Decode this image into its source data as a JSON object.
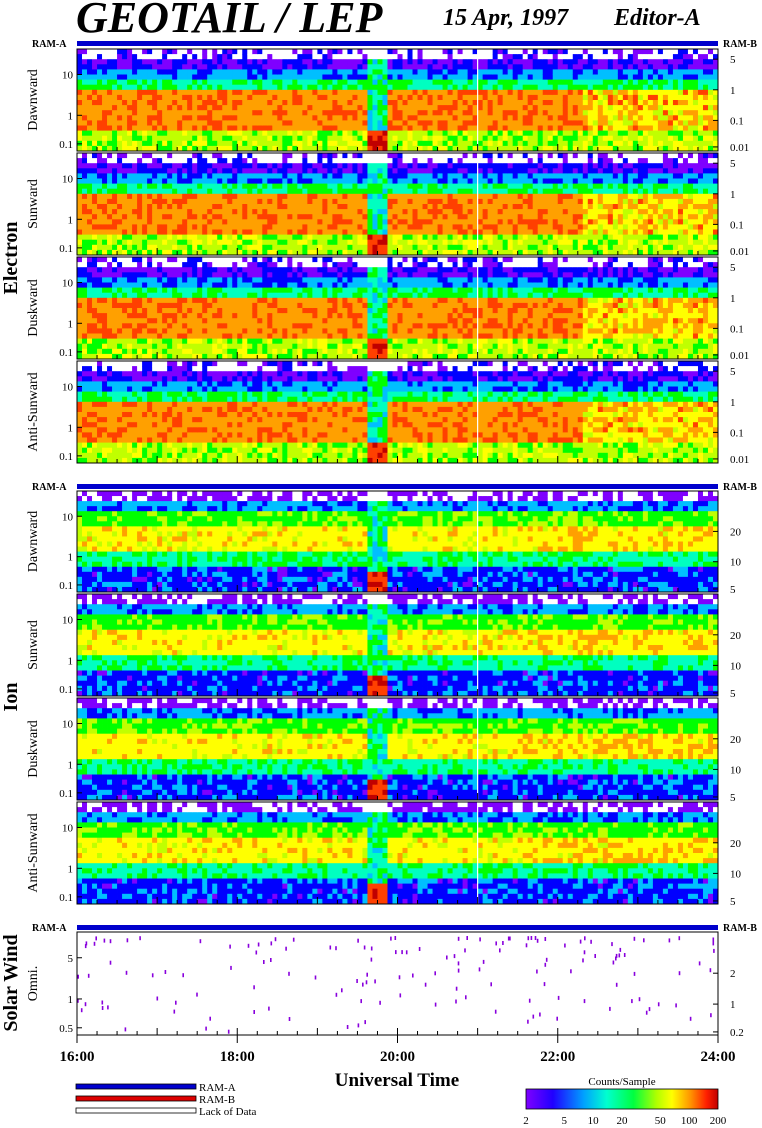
{
  "header": {
    "title": "GEOTAIL / LEP",
    "date": "15 Apr, 1997",
    "editor": "Editor-A"
  },
  "labels": {
    "ram_a": "RAM-A",
    "ram_b": "RAM-B"
  },
  "groups": {
    "electron": "Electron",
    "ion": "Ion",
    "solar_wind": "Solar Wind"
  },
  "panels": [
    {
      "group": "electron",
      "label": "Dawnward",
      "left_ticks": [
        "10",
        "1",
        "0.1"
      ],
      "right_ticks": [
        "5",
        "1",
        "0.1",
        "0.01"
      ]
    },
    {
      "group": "electron",
      "label": "Sunward",
      "left_ticks": [
        "10",
        "1",
        "0.1"
      ],
      "right_ticks": [
        "5",
        "1",
        "0.1",
        "0.01"
      ]
    },
    {
      "group": "electron",
      "label": "Duskward",
      "left_ticks": [
        "10",
        "1",
        "0.1"
      ],
      "right_ticks": [
        "5",
        "1",
        "0.1",
        "0.01"
      ]
    },
    {
      "group": "electron",
      "label": "Anti-Sunward",
      "left_ticks": [
        "10",
        "1",
        "0.1"
      ],
      "right_ticks": [
        "5",
        "1",
        "0.1",
        "0.01"
      ]
    },
    {
      "group": "ion",
      "label": "Dawnward",
      "left_ticks": [
        "10",
        "1",
        "0.1"
      ],
      "right_ticks": [
        "20",
        "10",
        "5"
      ]
    },
    {
      "group": "ion",
      "label": "Sunward",
      "left_ticks": [
        "10",
        "1",
        "0.1"
      ],
      "right_ticks": [
        "20",
        "10",
        "5"
      ]
    },
    {
      "group": "ion",
      "label": "Duskward",
      "left_ticks": [
        "10",
        "1",
        "0.1"
      ],
      "right_ticks": [
        "20",
        "10",
        "5"
      ]
    },
    {
      "group": "ion",
      "label": "Anti-Sunward",
      "left_ticks": [
        "10",
        "1",
        "0.1"
      ],
      "right_ticks": [
        "20",
        "10",
        "5"
      ]
    },
    {
      "group": "solar_wind",
      "label": "Omni.",
      "left_ticks": [
        "5",
        "1",
        "0.5"
      ],
      "right_ticks": [
        "2",
        "1",
        "0.2"
      ]
    }
  ],
  "chart_data": {
    "type": "heatmap",
    "title": "GEOTAIL / LEP",
    "xlabel": "Universal Time",
    "x_range": [
      "16:00",
      "24:00"
    ],
    "x_ticks": [
      "16:00",
      "18:00",
      "20:00",
      "22:00",
      "24:00"
    ],
    "y_scale": "log",
    "left_axis_range": [
      0.08,
      40
    ],
    "event_time": "19:45",
    "colorbar": {
      "title": "Counts/Sample",
      "scale": "log",
      "range": [
        2,
        200
      ],
      "ticks": [
        "2",
        "5",
        "10",
        "20",
        "50",
        "100",
        "200"
      ],
      "colors": [
        "#ffffff",
        "#7f00ff",
        "#0000ff",
        "#00bfff",
        "#00ffc0",
        "#00ff00",
        "#c0ff00",
        "#ffff00",
        "#ffa000",
        "#ff4000",
        "#c00000"
      ]
    }
  },
  "legend": [
    {
      "label": "RAM-A",
      "color": "#0000cc"
    },
    {
      "label": "RAM-B",
      "color": "#dd0000"
    },
    {
      "label": "Lack of Data",
      "color": "#ffffff"
    }
  ]
}
